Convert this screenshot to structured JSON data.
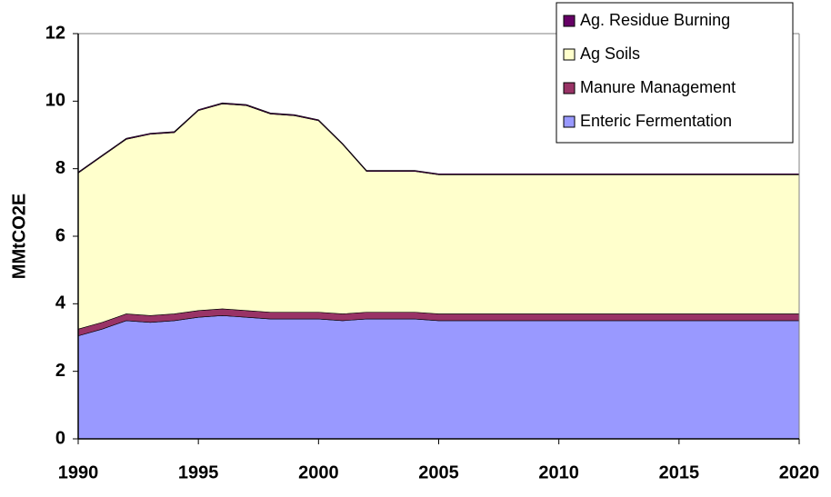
{
  "chart_data": {
    "type": "stacked-area",
    "y_label": "MMtCO2E",
    "x": [
      1990,
      1991,
      1992,
      1993,
      1994,
      1995,
      1996,
      1997,
      1998,
      1999,
      2000,
      2001,
      2002,
      2003,
      2004,
      2005,
      2006,
      2007,
      2008,
      2009,
      2010,
      2011,
      2012,
      2013,
      2014,
      2015,
      2016,
      2017,
      2018,
      2019,
      2020
    ],
    "series": [
      {
        "name": "Enteric Fermentation",
        "color": "#9999ff",
        "values": [
          3.05,
          3.25,
          3.5,
          3.45,
          3.5,
          3.6,
          3.65,
          3.6,
          3.55,
          3.55,
          3.55,
          3.5,
          3.55,
          3.55,
          3.55,
          3.5,
          3.5,
          3.5,
          3.5,
          3.5,
          3.5,
          3.5,
          3.5,
          3.5,
          3.5,
          3.5,
          3.5,
          3.5,
          3.5,
          3.5,
          3.5
        ]
      },
      {
        "name": "Manure Management",
        "color": "#993366",
        "values": [
          0.2,
          0.2,
          0.2,
          0.2,
          0.2,
          0.2,
          0.2,
          0.2,
          0.2,
          0.2,
          0.2,
          0.2,
          0.2,
          0.2,
          0.2,
          0.2,
          0.2,
          0.2,
          0.2,
          0.2,
          0.2,
          0.2,
          0.2,
          0.2,
          0.2,
          0.2,
          0.2,
          0.2,
          0.2,
          0.2,
          0.2
        ]
      },
      {
        "name": "Ag Soils",
        "color": "#ffffcc",
        "values": [
          4.62,
          4.92,
          5.17,
          5.37,
          5.37,
          5.92,
          6.07,
          6.07,
          5.87,
          5.82,
          5.67,
          5.02,
          4.17,
          4.17,
          4.17,
          4.12,
          4.12,
          4.12,
          4.12,
          4.12,
          4.12,
          4.12,
          4.12,
          4.12,
          4.12,
          4.12,
          4.12,
          4.12,
          4.12,
          4.12,
          4.12
        ]
      },
      {
        "name": "Ag. Residue Burning",
        "color": "#660066",
        "values": [
          0.03,
          0.03,
          0.03,
          0.03,
          0.03,
          0.03,
          0.03,
          0.03,
          0.03,
          0.03,
          0.03,
          0.03,
          0.03,
          0.03,
          0.03,
          0.03,
          0.03,
          0.03,
          0.03,
          0.03,
          0.03,
          0.03,
          0.03,
          0.03,
          0.03,
          0.03,
          0.03,
          0.03,
          0.03,
          0.03,
          0.03
        ]
      }
    ],
    "xlim": [
      1990,
      2020
    ],
    "xticks": [
      1990,
      1995,
      2000,
      2005,
      2010,
      2015,
      2020
    ],
    "ylim": [
      0,
      12
    ],
    "yticks": [
      0,
      2,
      4,
      6,
      8,
      10,
      12
    ],
    "legend": "top-right"
  }
}
